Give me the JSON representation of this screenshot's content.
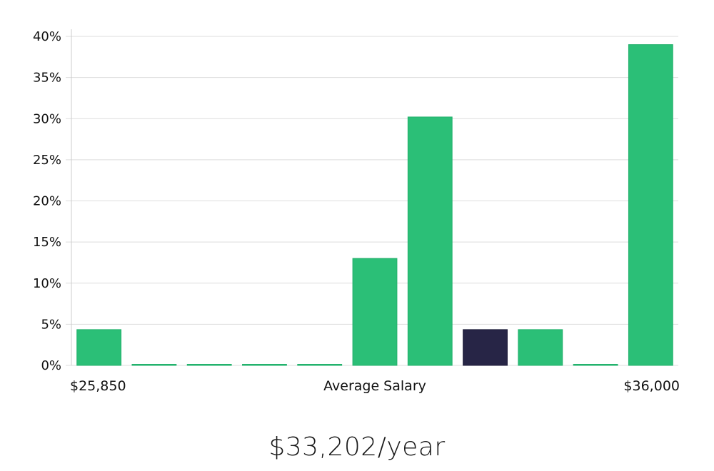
{
  "chart_data": {
    "type": "bar",
    "categories": [
      "1",
      "2",
      "3",
      "4",
      "5",
      "6",
      "7",
      "8",
      "9",
      "10",
      "11"
    ],
    "values": [
      4.35,
      0,
      0,
      0,
      0,
      13.0,
      30.2,
      4.35,
      4.35,
      0,
      39.0
    ],
    "highlight_index": 7,
    "ylim": [
      0,
      40
    ],
    "yticks": [
      0,
      5,
      10,
      15,
      20,
      25,
      30,
      35,
      40
    ],
    "ytick_labels": [
      "0%",
      "5%",
      "10%",
      "15%",
      "20%",
      "25%",
      "30%",
      "35%",
      "40%"
    ],
    "x_labels": {
      "left": "$25,850",
      "center": "Average Salary",
      "right": "$36,000"
    },
    "grid": true,
    "colors": {
      "bar": "#2bbf77",
      "bar_stroke": "#22b06b",
      "highlight": "#272546",
      "grid": "#dddddd",
      "axis": "#cccccc"
    }
  },
  "caption": "$33,202/year"
}
